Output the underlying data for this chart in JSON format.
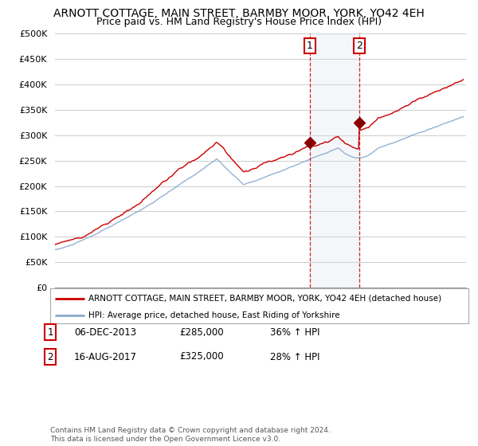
{
  "title": "ARNOTT COTTAGE, MAIN STREET, BARMBY MOOR, YORK, YO42 4EH",
  "subtitle": "Price paid vs. HM Land Registry's House Price Index (HPI)",
  "ylabel_ticks": [
    "£0",
    "£50K",
    "£100K",
    "£150K",
    "£200K",
    "£250K",
    "£300K",
    "£350K",
    "£400K",
    "£450K",
    "£500K"
  ],
  "ytick_values": [
    0,
    50000,
    100000,
    150000,
    200000,
    250000,
    300000,
    350000,
    400000,
    450000,
    500000
  ],
  "xlim_start": 1995.0,
  "xlim_end": 2025.5,
  "ylim": [
    0,
    500000
  ],
  "legend_line1": "ARNOTT COTTAGE, MAIN STREET, BARMBY MOOR, YORK, YO42 4EH (detached house)",
  "legend_line2": "HPI: Average price, detached house, East Riding of Yorkshire",
  "transaction1_date": "06-DEC-2013",
  "transaction1_price": 285000,
  "transaction1_label": "1",
  "transaction1_hpi": "36% ↑ HPI",
  "transaction2_date": "16-AUG-2017",
  "transaction2_price": 325000,
  "transaction2_label": "2",
  "transaction2_hpi": "28% ↑ HPI",
  "copyright_text": "Contains HM Land Registry data © Crown copyright and database right 2024.\nThis data is licensed under the Open Government Licence v3.0.",
  "line_color_red": "#cc0000",
  "line_color_blue": "#88aacc",
  "highlight_color": "#dce6f1",
  "vline_color": "#cc0000",
  "background_color": "#ffffff",
  "grid_color": "#cccccc",
  "title_fontsize": 10,
  "subtitle_fontsize": 9
}
